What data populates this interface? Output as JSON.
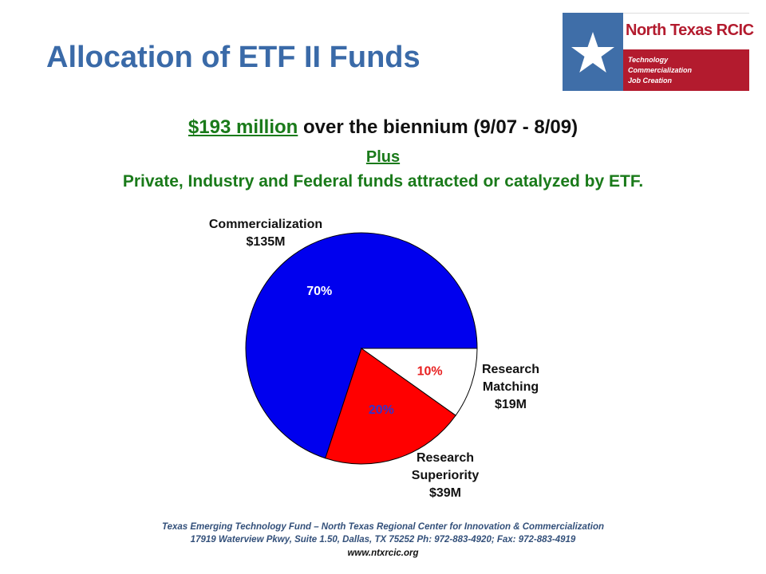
{
  "title": "Allocation of ETF II Funds",
  "logo": {
    "name": "North Texas RCIC",
    "tagline": [
      "Technology",
      "Commercialization",
      "Job Creation"
    ]
  },
  "summary": {
    "amount": "$193 million",
    "amount_rest": " over the biennium (9/07 - 8/09)",
    "plus": "Plus",
    "extra": "Private, Industry and Federal funds attracted or catalyzed by ETF."
  },
  "chart_data": {
    "type": "pie",
    "title": "",
    "slices": [
      {
        "label": "Commercialization",
        "amount": "$135M",
        "value": 135,
        "percent": "70%",
        "color": "#0000ee",
        "pct_color": "#ffffff"
      },
      {
        "label": "Research Superiority",
        "amount": "$39M",
        "value": 39,
        "percent": "20%",
        "color": "#ff0000",
        "pct_color": "#3333cc"
      },
      {
        "label": "Research Matching",
        "amount": "$19M",
        "value": 19,
        "percent": "10%",
        "color": "#ffffff",
        "pct_color": "#e82020"
      }
    ],
    "start_angle_deg": 0,
    "direction": "counterclockwise"
  },
  "footer": {
    "line1": "Texas Emerging Technology Fund – North Texas Regional Center for Innovation & Commercialization",
    "line2": "17919 Waterview Pkwy, Suite 1.50, Dallas, TX  75252  Ph: 972-883-4920;  Fax: 972-883-4919",
    "url": "www.ntxrcic.org"
  }
}
